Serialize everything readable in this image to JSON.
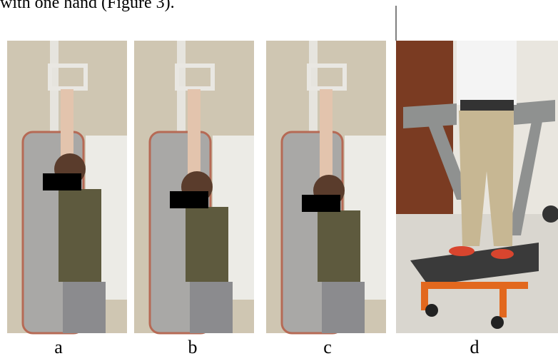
{
  "caption_text": "with one hand (Figure 3).",
  "panels": [
    {
      "label": "a"
    },
    {
      "label": "b"
    },
    {
      "label": "c"
    },
    {
      "label": "d"
    }
  ]
}
